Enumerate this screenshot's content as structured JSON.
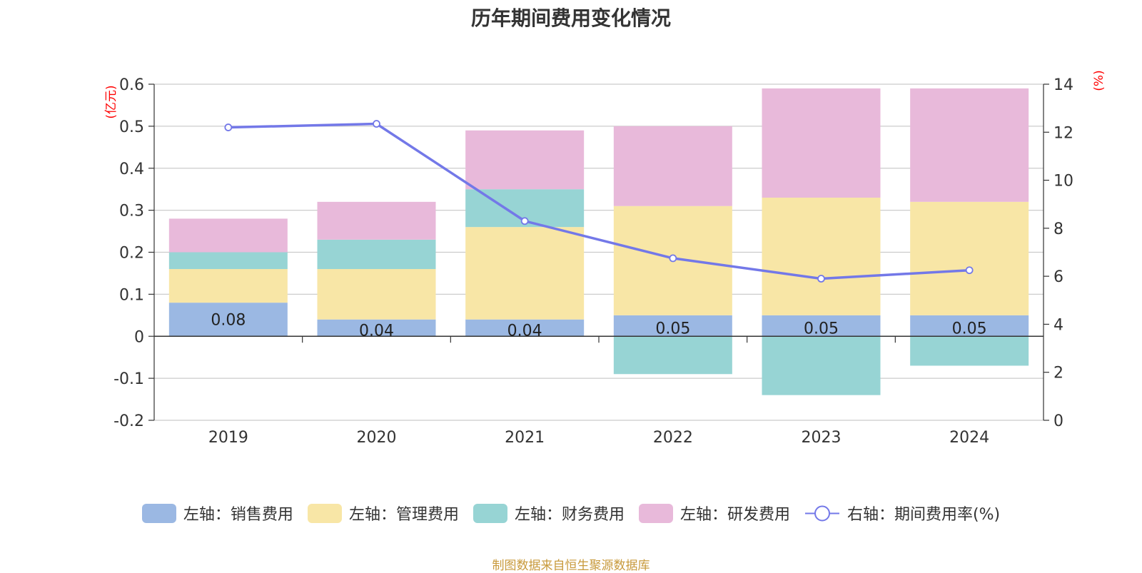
{
  "chart_data": {
    "type": "bar",
    "title": "历年期间费用变化情况",
    "categories": [
      "2019",
      "2020",
      "2021",
      "2022",
      "2023",
      "2024"
    ],
    "left_axis": {
      "unit": "(亿元)",
      "ylim": [
        -0.2,
        0.6
      ],
      "ticks": [
        "-0.2",
        "-0.1",
        "0",
        "0.1",
        "0.2",
        "0.3",
        "0.4",
        "0.5",
        "0.6"
      ]
    },
    "right_axis": {
      "unit": "(%)",
      "ylim": [
        0,
        14
      ],
      "ticks": [
        "0",
        "2",
        "4",
        "6",
        "8",
        "10",
        "12",
        "14"
      ]
    },
    "stacked": true,
    "series": [
      {
        "name": "左轴：销售费用",
        "type": "bar",
        "axis": "left",
        "color": "#9bb8e3",
        "values": [
          0.08,
          0.04,
          0.04,
          0.05,
          0.05,
          0.05
        ],
        "labels": [
          "0.08",
          "0.04",
          "0.04",
          "0.05",
          "0.05",
          "0.05"
        ]
      },
      {
        "name": "左轴：管理费用",
        "type": "bar",
        "axis": "left",
        "color": "#f8e6a6",
        "values": [
          0.08,
          0.12,
          0.22,
          0.26,
          0.28,
          0.27
        ]
      },
      {
        "name": "左轴：财务费用",
        "type": "bar",
        "axis": "left",
        "color": "#97d4d4",
        "values": [
          0.04,
          0.07,
          0.09,
          -0.09,
          -0.14,
          -0.07
        ]
      },
      {
        "name": "左轴：研发费用",
        "type": "bar",
        "axis": "left",
        "color": "#e8b9da",
        "values": [
          0.08,
          0.09,
          0.14,
          0.19,
          0.26,
          0.27
        ]
      },
      {
        "name": "右轴：期间费用率(%)",
        "type": "line",
        "axis": "right",
        "color": "#7378e8",
        "values": [
          12.2,
          12.35,
          8.3,
          6.75,
          5.9,
          6.25
        ]
      }
    ],
    "grid": true,
    "legend_position": "bottom"
  },
  "footer": {
    "source": "制图数据来自恒生聚源数据库"
  }
}
